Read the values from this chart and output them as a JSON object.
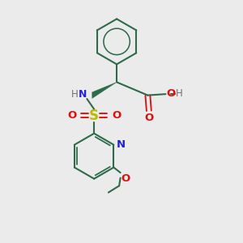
{
  "bg_color": "#ebebeb",
  "bond_color": "#2d6b4a",
  "N_color": "#2020dd",
  "O_color": "#dd1010",
  "S_color": "#bbbb00",
  "H_color": "#707070",
  "figsize": [
    3.0,
    3.0
  ],
  "dpi": 100,
  "xlim": [
    0,
    10
  ],
  "ylim": [
    0,
    10
  ]
}
